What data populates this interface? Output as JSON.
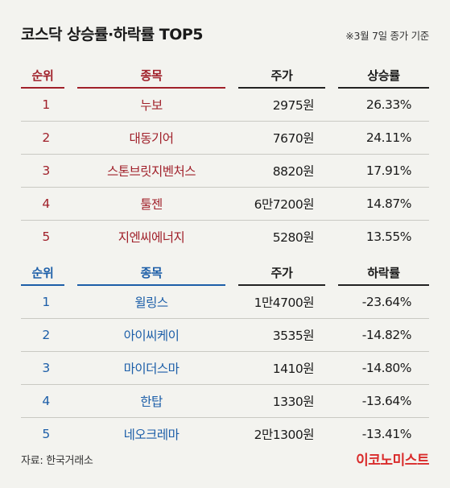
{
  "header": {
    "title": "코스닥 상승률·하락률 TOP5",
    "subtitle": "※3월 7일 종가 기준"
  },
  "colors": {
    "gainer_accent": "#a0202a",
    "loser_accent": "#1c5ea8",
    "brand": "#d92b2b"
  },
  "gainers": {
    "columns": {
      "rank": "순위",
      "name": "종목",
      "price": "주가",
      "change": "상승률"
    },
    "rows": [
      {
        "rank": "1",
        "name": "누보",
        "price": "2975원",
        "change": "26.33%"
      },
      {
        "rank": "2",
        "name": "대동기어",
        "price": "7670원",
        "change": "24.11%"
      },
      {
        "rank": "3",
        "name": "스톤브릿지벤처스",
        "price": "8820원",
        "change": "17.91%"
      },
      {
        "rank": "4",
        "name": "툴젠",
        "price": "6만7200원",
        "change": "14.87%"
      },
      {
        "rank": "5",
        "name": "지엔씨에너지",
        "price": "5280원",
        "change": "13.55%"
      }
    ]
  },
  "losers": {
    "columns": {
      "rank": "순위",
      "name": "종목",
      "price": "주가",
      "change": "하락률"
    },
    "rows": [
      {
        "rank": "1",
        "name": "윌링스",
        "price": "1만4700원",
        "change": "-23.64%"
      },
      {
        "rank": "2",
        "name": "아이씨케이",
        "price": "3535원",
        "change": "-14.82%"
      },
      {
        "rank": "3",
        "name": "마이더스마",
        "price": "1410원",
        "change": "-14.80%"
      },
      {
        "rank": "4",
        "name": "한탑",
        "price": "1330원",
        "change": "-13.64%"
      },
      {
        "rank": "5",
        "name": "네오크레마",
        "price": "2만1300원",
        "change": "-13.41%"
      }
    ]
  },
  "footer": {
    "source": "자료: 한국거래소",
    "brand": "이코노미스트"
  }
}
